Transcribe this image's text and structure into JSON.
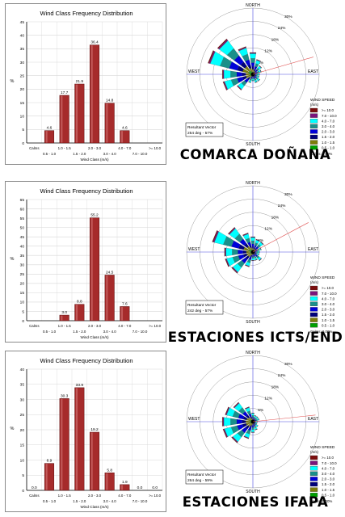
{
  "colors": {
    "bar_fill": "#a62b2b",
    "bar_highlight": "#c25a5a",
    "grid": "#d7d7d7",
    "speed_bins": [
      "#7b0d0d",
      "#7a147a",
      "#00ffff",
      "#1a8f8a",
      "#0000d9",
      "#00007a",
      "#7d7d0a",
      "#00a000"
    ]
  },
  "panels": [
    {
      "caption": "COMARCA DOÑANA",
      "chart_data": {
        "type": "bar",
        "title": "Wind Class Frequency Distribution",
        "xlabel": "Wind Class (m/s)",
        "ylabel": "%",
        "ylim": [
          0,
          45
        ],
        "ytick_step": 5,
        "grid": true,
        "categories_row1": [
          "Calms",
          "1.0 - 1.5",
          "2.0 - 3.0",
          "4.0 - 7.0",
          ">= 10.0"
        ],
        "categories_row2": [
          "0.5 - 1.0",
          "1.5 - 2.0",
          "3.0 - 4.0",
          "7.0 - 10.0"
        ],
        "categories": [
          "Calms",
          "0.5 - 1.0",
          "1.0 - 1.5",
          "1.5 - 2.0",
          "2.0 - 3.0",
          "3.0 - 4.0",
          "4.0 - 7.0",
          "7.0 - 10.0",
          ">= 10.0"
        ],
        "values": [
          null,
          4.6,
          17.7,
          21.9,
          36.4,
          14.8,
          4.6,
          null,
          null
        ],
        "labels": [
          "",
          "4.6",
          "17.7",
          "21.9",
          "36.4",
          "14.8",
          "4.6",
          "",
          ""
        ]
      },
      "rose": {
        "rings_pct": [
          6,
          12,
          18,
          24,
          30
        ],
        "ring_labels": [
          "6%",
          "12%",
          "18%",
          "24%",
          "30%"
        ],
        "north": "NORTH",
        "south": "SOUTH",
        "east": "EAST",
        "west": "WEST",
        "vector_label": "Resultant Vector",
        "vector_value": "254 deg - 57%",
        "vector_dir_deg": 254,
        "legend_title": "WIND SPEED",
        "legend_units": "(m/s)",
        "legend_items": [
          ">= 10.0",
          "7.0 - 10.0",
          "4.0 - 7.0",
          "3.0 - 4.0",
          "2.0 - 3.0",
          "1.5 - 2.0",
          "1.0 - 1.5",
          "0.5 - 1.0"
        ],
        "calms": "Calms: 0.00%",
        "petals": [
          {
            "dir": 0,
            "pct": 10
          },
          {
            "dir": 22.5,
            "pct": 7
          },
          {
            "dir": 45,
            "pct": 5
          },
          {
            "dir": 67.5,
            "pct": 4
          },
          {
            "dir": 90,
            "pct": 3
          },
          {
            "dir": 112.5,
            "pct": 3
          },
          {
            "dir": 135,
            "pct": 4
          },
          {
            "dir": 157.5,
            "pct": 4
          },
          {
            "dir": 180,
            "pct": 3
          },
          {
            "dir": 202.5,
            "pct": 4
          },
          {
            "dir": 225,
            "pct": 9
          },
          {
            "dir": 247.5,
            "pct": 14
          },
          {
            "dir": 270,
            "pct": 14
          },
          {
            "dir": 292.5,
            "pct": 21
          },
          {
            "dir": 315,
            "pct": 20
          },
          {
            "dir": 337.5,
            "pct": 13
          }
        ]
      }
    },
    {
      "caption": "ESTACIONES ICTS/END",
      "chart_data": {
        "type": "bar",
        "title": "Wind Class Frequency Distribution",
        "xlabel": "Wind Class (m/s)",
        "ylabel": "%",
        "ylim": [
          0,
          65
        ],
        "ytick_step": 5,
        "grid": true,
        "categories_row1": [
          "Calms",
          "1.0 - 1.5",
          "2.0 - 3.0",
          "4.0 - 7.0",
          ">= 10.0"
        ],
        "categories_row2": [
          "0.5 - 1.0",
          "1.5 - 2.0",
          "3.0 - 4.0",
          "7.0 - 10.0"
        ],
        "categories": [
          "Calms",
          "0.5 - 1.0",
          "1.0 - 1.5",
          "1.5 - 2.0",
          "2.0 - 3.0",
          "3.0 - 4.0",
          "4.0 - 7.0",
          "7.0 - 10.0",
          ">= 10.0"
        ],
        "values": [
          null,
          null,
          3.0,
          8.8,
          55.2,
          24.5,
          7.6,
          null,
          null
        ],
        "labels": [
          "",
          "",
          "3.0",
          "8.8",
          "55.2",
          "24.5",
          "7.6",
          "",
          ""
        ]
      },
      "rose": {
        "rings_pct": [
          6,
          12,
          18,
          24,
          30
        ],
        "ring_labels": [
          "6%",
          "12%",
          "18%",
          "24%",
          "30%"
        ],
        "north": "NORTH",
        "south": "SOUTH",
        "east": "EAST",
        "west": "WEST",
        "vector_label": "Resultant Vector",
        "vector_value": "242 deg - 57%",
        "vector_dir_deg": 242,
        "legend_title": "WIND SPEED",
        "legend_units": "(m/s)",
        "legend_items": [
          ">= 10.0",
          "7.0 - 10.0",
          "4.0 - 7.0",
          "3.0 - 4.0",
          "2.0 - 3.0",
          "1.5 - 2.0",
          "1.0 - 1.5",
          "0.5 - 1.0"
        ],
        "calms": "Calms: 0.00%",
        "petals": [
          {
            "dir": 0,
            "pct": 7
          },
          {
            "dir": 22.5,
            "pct": 6
          },
          {
            "dir": 45,
            "pct": 6
          },
          {
            "dir": 67.5,
            "pct": 4
          },
          {
            "dir": 90,
            "pct": 3
          },
          {
            "dir": 112.5,
            "pct": 3
          },
          {
            "dir": 135,
            "pct": 5
          },
          {
            "dir": 157.5,
            "pct": 4
          },
          {
            "dir": 180,
            "pct": 4
          },
          {
            "dir": 202.5,
            "pct": 7
          },
          {
            "dir": 225,
            "pct": 12
          },
          {
            "dir": 247.5,
            "pct": 13
          },
          {
            "dir": 270,
            "pct": 13
          },
          {
            "dir": 292.5,
            "pct": 19
          },
          {
            "dir": 315,
            "pct": 14
          },
          {
            "dir": 337.5,
            "pct": 9
          }
        ]
      }
    },
    {
      "caption": "ESTACIONES IFAPA",
      "chart_data": {
        "type": "bar",
        "title": "Wind Class Frequency Distribution",
        "xlabel": "Wind Class (m/s)",
        "ylabel": "%",
        "ylim": [
          0,
          40
        ],
        "ytick_step": 5,
        "grid": true,
        "categories_row1": [
          "Calms",
          "1.0 - 1.5",
          "2.0 - 3.0",
          "4.0 - 7.0",
          ">= 10.0"
        ],
        "categories_row2": [
          "0.5 - 1.0",
          "1.5 - 2.0",
          "3.0 - 4.0",
          "7.0 - 10.0"
        ],
        "categories": [
          "Calms",
          "0.5 - 1.0",
          "1.0 - 1.5",
          "1.5 - 2.0",
          "2.0 - 3.0",
          "3.0 - 4.0",
          "4.0 - 7.0",
          "7.0 - 10.0",
          ">= 10.0"
        ],
        "values": [
          0.0,
          8.9,
          30.3,
          33.9,
          19.2,
          5.8,
          1.9,
          0.0,
          0.0
        ],
        "labels": [
          "0.0",
          "8.9",
          "30.3",
          "33.9",
          "19.2",
          "5.8",
          "1.9",
          "0.0",
          "0.0"
        ]
      },
      "rose": {
        "rings_pct": [
          6,
          12,
          18,
          24,
          30
        ],
        "ring_labels": [
          "6%",
          "12%",
          "18%",
          "24%",
          "30%"
        ],
        "north": "NORTH",
        "south": "SOUTH",
        "east": "EAST",
        "west": "WEST",
        "vector_label": "Resultant Vector",
        "vector_value": "264 deg - 59%",
        "vector_dir_deg": 264,
        "legend_title": "WIND SPEED",
        "legend_units": "(m/s)",
        "legend_items": [
          ">= 10.0",
          "7.0 - 10.0",
          "4.0 - 7.0",
          "3.0 - 4.0",
          "2.0 - 3.0",
          "1.5 - 2.0",
          "1.0 - 1.5",
          "0.5 - 1.0"
        ],
        "calms": "Calms: 0.00%",
        "petals": [
          {
            "dir": 0,
            "pct": 4
          },
          {
            "dir": 22.5,
            "pct": 3
          },
          {
            "dir": 45,
            "pct": 3
          },
          {
            "dir": 67.5,
            "pct": 3
          },
          {
            "dir": 90,
            "pct": 2
          },
          {
            "dir": 112.5,
            "pct": 2
          },
          {
            "dir": 135,
            "pct": 3
          },
          {
            "dir": 157.5,
            "pct": 4
          },
          {
            "dir": 180,
            "pct": 5
          },
          {
            "dir": 202.5,
            "pct": 8
          },
          {
            "dir": 225,
            "pct": 12
          },
          {
            "dir": 247.5,
            "pct": 14
          },
          {
            "dir": 270,
            "pct": 14
          },
          {
            "dir": 292.5,
            "pct": 13
          },
          {
            "dir": 315,
            "pct": 11
          },
          {
            "dir": 337.5,
            "pct": 7
          }
        ]
      }
    }
  ]
}
